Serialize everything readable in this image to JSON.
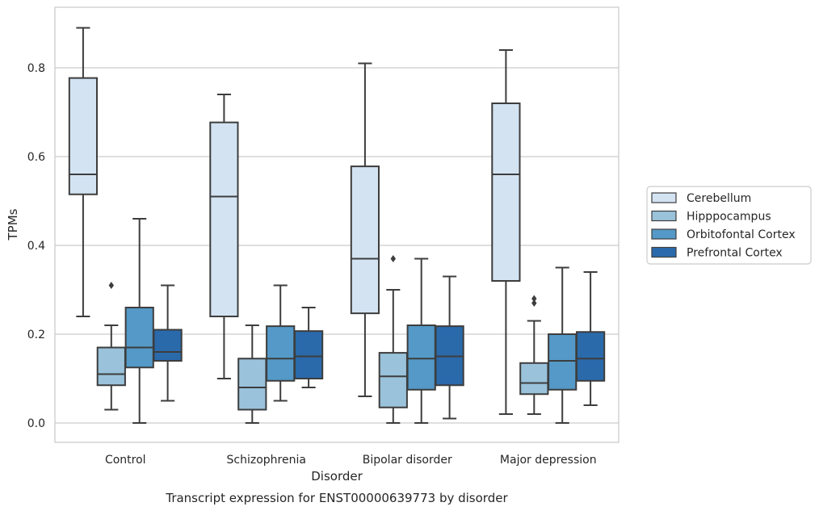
{
  "chart_data": {
    "type": "box",
    "title": "",
    "xlabel": "Disorder",
    "ylabel": "TPMs",
    "caption": "Transcript expression for ENST00000639773 by disorder",
    "categories": [
      "Control",
      "Schizophrenia",
      "Bipolar disorder",
      "Major depression"
    ],
    "ylim": [
      -0.042,
      0.93
    ],
    "yticks": [
      0.0,
      0.2,
      0.4,
      0.6,
      0.8
    ],
    "ytick_labels": [
      "0.0",
      "0.2",
      "0.4",
      "0.6",
      "0.8"
    ],
    "grid": "horizontal",
    "legend_position": "right",
    "series": [
      {
        "name": "Cerebellum",
        "color": "#d3e3f2",
        "boxes": [
          {
            "whisker_low": 0.24,
            "q1": 0.515,
            "median": 0.56,
            "q3": 0.777,
            "whisker_high": 0.89,
            "outliers": []
          },
          {
            "whisker_low": 0.1,
            "q1": 0.24,
            "median": 0.51,
            "q3": 0.677,
            "whisker_high": 0.74,
            "outliers": []
          },
          {
            "whisker_low": 0.06,
            "q1": 0.247,
            "median": 0.37,
            "q3": 0.578,
            "whisker_high": 0.81,
            "outliers": []
          },
          {
            "whisker_low": 0.02,
            "q1": 0.32,
            "median": 0.56,
            "q3": 0.72,
            "whisker_high": 0.84,
            "outliers": []
          }
        ]
      },
      {
        "name": "Hipppocampus",
        "color": "#9ac2db",
        "boxes": [
          {
            "whisker_low": 0.03,
            "q1": 0.085,
            "median": 0.11,
            "q3": 0.17,
            "whisker_high": 0.22,
            "outliers": [
              0.31
            ]
          },
          {
            "whisker_low": 0.0,
            "q1": 0.03,
            "median": 0.08,
            "q3": 0.145,
            "whisker_high": 0.22,
            "outliers": []
          },
          {
            "whisker_low": 0.0,
            "q1": 0.035,
            "median": 0.105,
            "q3": 0.158,
            "whisker_high": 0.3,
            "outliers": [
              0.37
            ]
          },
          {
            "whisker_low": 0.02,
            "q1": 0.065,
            "median": 0.09,
            "q3": 0.135,
            "whisker_high": 0.23,
            "outliers": [
              0.27,
              0.28
            ]
          }
        ]
      },
      {
        "name": "Orbitofontal Cortex",
        "color": "#5499c7",
        "boxes": [
          {
            "whisker_low": 0.0,
            "q1": 0.125,
            "median": 0.17,
            "q3": 0.26,
            "whisker_high": 0.46,
            "outliers": []
          },
          {
            "whisker_low": 0.05,
            "q1": 0.095,
            "median": 0.145,
            "q3": 0.218,
            "whisker_high": 0.31,
            "outliers": []
          },
          {
            "whisker_low": 0.0,
            "q1": 0.075,
            "median": 0.145,
            "q3": 0.22,
            "whisker_high": 0.37,
            "outliers": []
          },
          {
            "whisker_low": 0.0,
            "q1": 0.075,
            "median": 0.14,
            "q3": 0.2,
            "whisker_high": 0.35,
            "outliers": []
          }
        ]
      },
      {
        "name": "Prefrontal Cortex",
        "color": "#2a6aab",
        "boxes": [
          {
            "whisker_low": 0.05,
            "q1": 0.14,
            "median": 0.16,
            "q3": 0.21,
            "whisker_high": 0.31,
            "outliers": []
          },
          {
            "whisker_low": 0.08,
            "q1": 0.1,
            "median": 0.15,
            "q3": 0.207,
            "whisker_high": 0.26,
            "outliers": []
          },
          {
            "whisker_low": 0.01,
            "q1": 0.085,
            "median": 0.15,
            "q3": 0.218,
            "whisker_high": 0.33,
            "outliers": []
          },
          {
            "whisker_low": 0.04,
            "q1": 0.095,
            "median": 0.145,
            "q3": 0.205,
            "whisker_high": 0.34,
            "outliers": []
          }
        ]
      }
    ]
  }
}
